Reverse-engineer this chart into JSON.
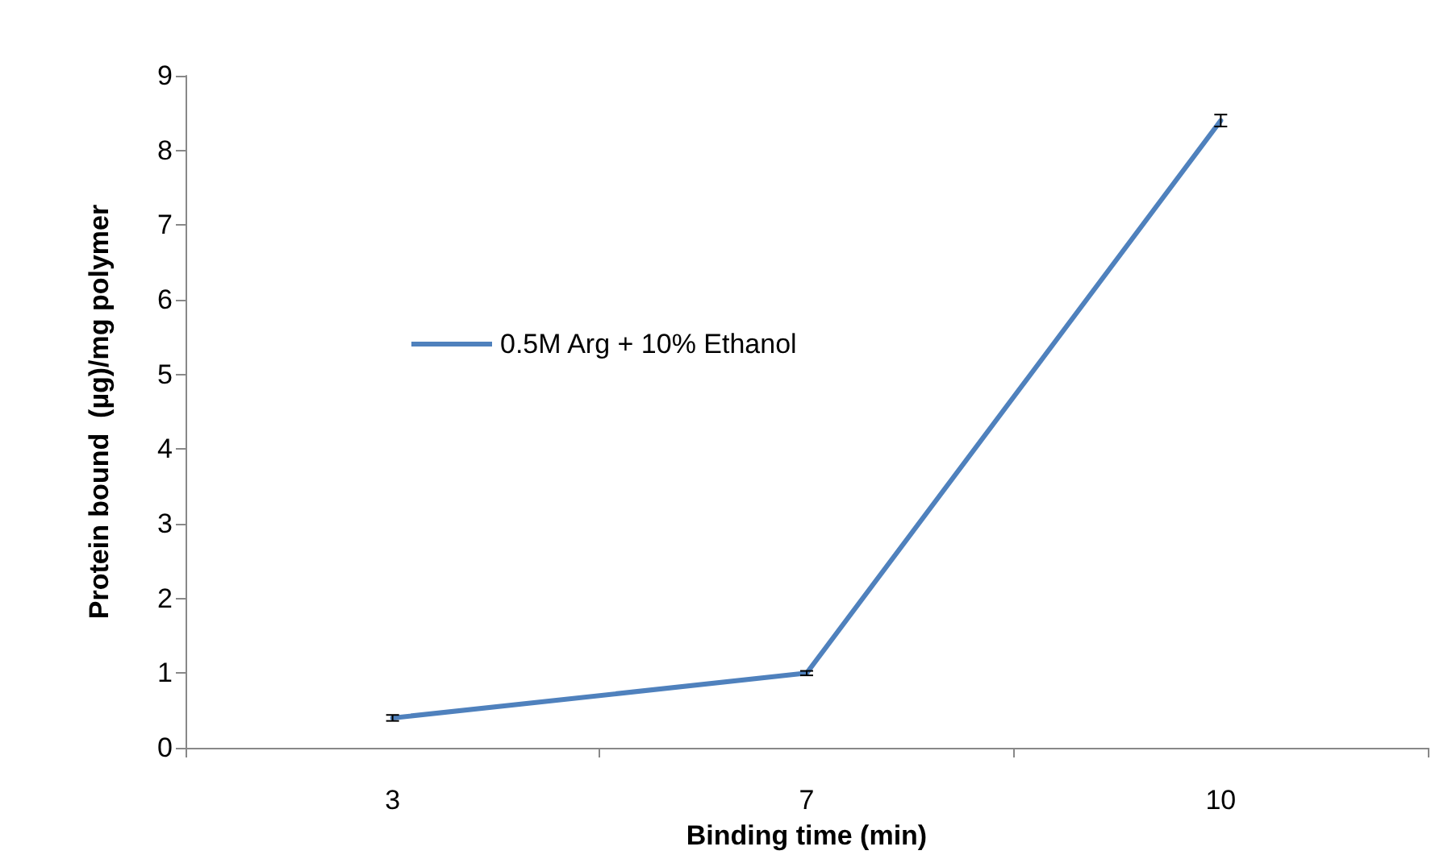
{
  "chart_data": {
    "type": "line",
    "xlabel": "Binding time (min)",
    "ylabel": "Protein bound  (µg)/mg polymer",
    "categories": [
      "3",
      "7",
      "10"
    ],
    "series": [
      {
        "name": "0.5M Arg + 10% Ethanol",
        "color": "#4f81bd",
        "values": [
          0.4,
          1.0,
          8.4
        ],
        "errors": [
          0.04,
          0.03,
          0.08
        ]
      }
    ],
    "ylim": [
      0,
      9
    ],
    "yticks": [
      0,
      1,
      2,
      3,
      4,
      5,
      6,
      7,
      8,
      9
    ],
    "grid": false,
    "legend": "center",
    "marker": "none",
    "line_style": "solid"
  }
}
